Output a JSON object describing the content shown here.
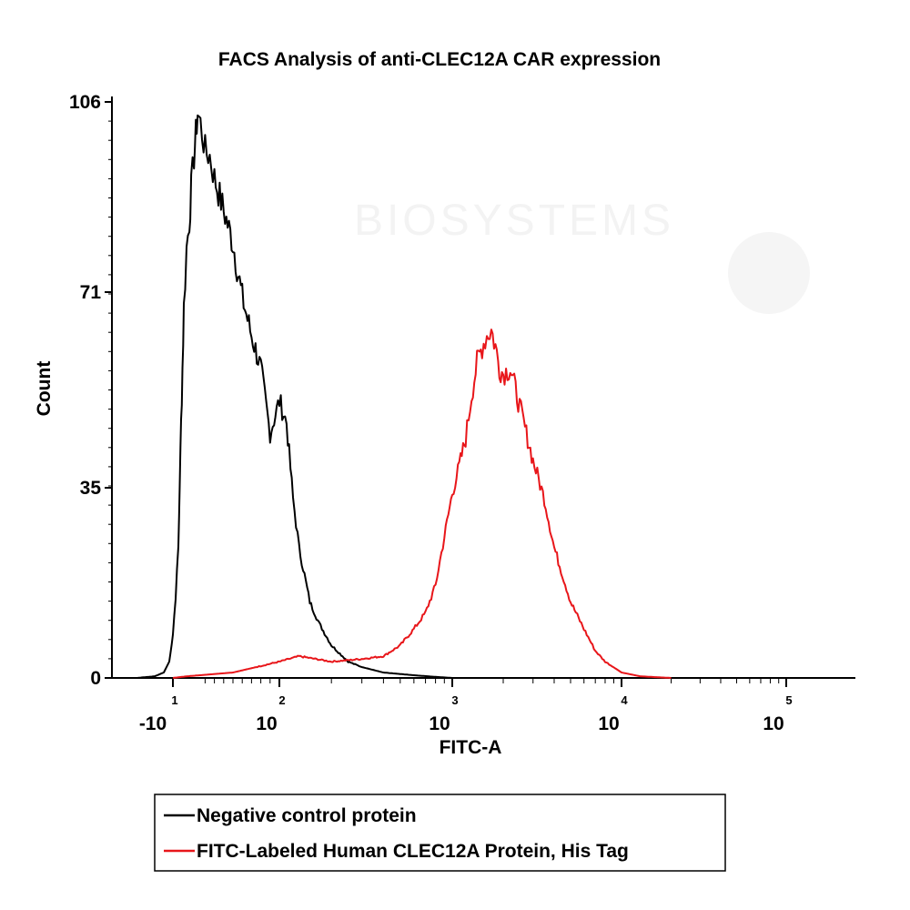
{
  "chart_data": {
    "type": "line",
    "title": "FACS Analysis of anti-CLEC12A CAR expression",
    "xlabel": "FITC-A",
    "ylabel": "Count",
    "x_scale": "biexponential",
    "x_ticks": [
      {
        "base": "-10",
        "exp": "1",
        "value": -10
      },
      {
        "base": "10",
        "exp": "2",
        "value": 100
      },
      {
        "base": "10",
        "exp": "3",
        "value": 1000
      },
      {
        "base": "10",
        "exp": "4",
        "value": 10000
      },
      {
        "base": "10",
        "exp": "5",
        "value": 100000
      }
    ],
    "y_ticks": [
      "0",
      "35",
      "71",
      "106"
    ],
    "ylim": [
      0,
      106
    ],
    "grid": false,
    "legend_position": "bottom-left",
    "watermark_text": "BIOSYSTEMS",
    "series": [
      {
        "name": "Negative control protein",
        "color": "#000000",
        "points": [
          [
            -30,
            0
          ],
          [
            -20,
            0.3
          ],
          [
            -15,
            1
          ],
          [
            -12,
            3
          ],
          [
            -10,
            8
          ],
          [
            -8,
            15
          ],
          [
            -6,
            24
          ],
          [
            -5,
            36
          ],
          [
            -4,
            47
          ],
          [
            -3,
            57
          ],
          [
            -2,
            68
          ],
          [
            0,
            79
          ],
          [
            3,
            84
          ],
          [
            5,
            90
          ],
          [
            8,
            96
          ],
          [
            10,
            100
          ],
          [
            12,
            104
          ],
          [
            15,
            102
          ],
          [
            20,
            97
          ],
          [
            25,
            96
          ],
          [
            30,
            92
          ],
          [
            40,
            86
          ],
          [
            50,
            80
          ],
          [
            60,
            70
          ],
          [
            70,
            63
          ],
          [
            80,
            57
          ],
          [
            90,
            45
          ],
          [
            100,
            51
          ],
          [
            110,
            47
          ],
          [
            120,
            33
          ],
          [
            130,
            24
          ],
          [
            150,
            14
          ],
          [
            170,
            10
          ],
          [
            200,
            6
          ],
          [
            250,
            3
          ],
          [
            300,
            2
          ],
          [
            400,
            1
          ],
          [
            600,
            0.5
          ],
          [
            800,
            0.2
          ],
          [
            1000,
            0
          ]
        ]
      },
      {
        "name": "FITC-Labeled Human CLEC12A Protein, His Tag",
        "color": "#e8161a",
        "points": [
          [
            -10,
            0
          ],
          [
            0,
            0.3
          ],
          [
            50,
            1
          ],
          [
            100,
            3
          ],
          [
            130,
            4
          ],
          [
            200,
            3
          ],
          [
            300,
            3.5
          ],
          [
            400,
            4
          ],
          [
            500,
            6
          ],
          [
            600,
            9
          ],
          [
            700,
            12
          ],
          [
            800,
            17
          ],
          [
            900,
            26
          ],
          [
            1000,
            34
          ],
          [
            1100,
            39
          ],
          [
            1200,
            44
          ],
          [
            1300,
            52
          ],
          [
            1400,
            58
          ],
          [
            1500,
            61
          ],
          [
            1600,
            63
          ],
          [
            1700,
            64
          ],
          [
            1800,
            61
          ],
          [
            1900,
            57
          ],
          [
            2000,
            56
          ],
          [
            2200,
            57
          ],
          [
            2500,
            50
          ],
          [
            3000,
            40
          ],
          [
            3500,
            33
          ],
          [
            4000,
            24
          ],
          [
            5000,
            14
          ],
          [
            6000,
            9
          ],
          [
            7000,
            5
          ],
          [
            8000,
            3
          ],
          [
            10000,
            1
          ],
          [
            13000,
            0.3
          ],
          [
            20000,
            0
          ]
        ]
      }
    ]
  }
}
